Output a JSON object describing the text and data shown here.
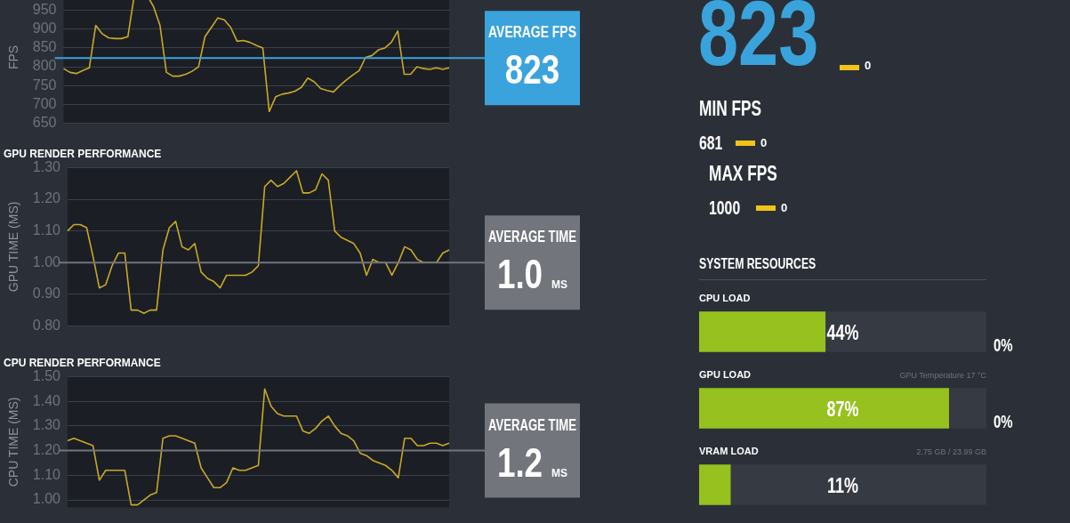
{
  "chart_data": [
    {
      "type": "line",
      "ylabel": "FPS",
      "categories": [
        null,
        null,
        null,
        null,
        null,
        null,
        null,
        null,
        null,
        null,
        null,
        null,
        null,
        null,
        null,
        null,
        null,
        null,
        null,
        null,
        null,
        null,
        null,
        null,
        null,
        null,
        null,
        null,
        null,
        null,
        null,
        null,
        null,
        null,
        null,
        null,
        null,
        null,
        null,
        null,
        null,
        null,
        null,
        null,
        null,
        null,
        null,
        null,
        null,
        null,
        null,
        null,
        null,
        null,
        null,
        null,
        null,
        null,
        null,
        null,
        null
      ],
      "values": [
        795,
        785,
        782,
        790,
        797,
        910,
        888,
        877,
        875,
        875,
        880,
        990,
        1000,
        990,
        960,
        910,
        785,
        775,
        775,
        780,
        788,
        800,
        880,
        905,
        930,
        925,
        905,
        868,
        870,
        865,
        857,
        850,
        681,
        720,
        727,
        730,
        735,
        745,
        770,
        760,
        742,
        737,
        733,
        750,
        765,
        778,
        790,
        825,
        830,
        845,
        850,
        865,
        895,
        780,
        780,
        800,
        795,
        793,
        797,
        793,
        797
      ],
      "color": "#c9a929",
      "ylim": [
        650,
        1000
      ],
      "yticks": [
        650,
        700,
        750,
        800,
        850,
        900,
        950
      ],
      "grid": "y",
      "ref_lines": [
        {
          "axis": "y",
          "value": 823,
          "label": "AVERAGE FPS 823",
          "color": "#3aa3dc"
        }
      ]
    },
    {
      "type": "line",
      "title": "GPU RENDER PERFORMANCE",
      "ylabel": "GPU TIME (MS)",
      "categories": [
        null,
        null,
        null,
        null,
        null,
        null,
        null,
        null,
        null,
        null,
        null,
        null,
        null,
        null,
        null,
        null,
        null,
        null,
        null,
        null,
        null,
        null,
        null,
        null,
        null,
        null,
        null,
        null,
        null,
        null,
        null,
        null,
        null,
        null,
        null,
        null,
        null,
        null,
        null,
        null,
        null,
        null,
        null,
        null,
        null,
        null,
        null,
        null,
        null,
        null,
        null,
        null,
        null,
        null,
        null,
        null,
        null,
        null,
        null,
        null,
        null
      ],
      "values": [
        1.1,
        1.12,
        1.12,
        1.11,
        1.02,
        0.92,
        0.93,
        0.99,
        1.03,
        1.03,
        0.85,
        0.85,
        0.84,
        0.85,
        0.85,
        1.04,
        1.11,
        1.13,
        1.05,
        1.04,
        1.06,
        0.97,
        0.95,
        0.94,
        0.92,
        0.96,
        0.96,
        0.96,
        0.96,
        0.97,
        0.99,
        1.24,
        1.26,
        1.24,
        1.25,
        1.27,
        1.29,
        1.22,
        1.22,
        1.23,
        1.28,
        1.26,
        1.1,
        1.08,
        1.07,
        1.06,
        1.03,
        0.96,
        1.01,
        1.0,
        1.0,
        0.96,
        1.0,
        1.05,
        1.04,
        1.01,
        1.0,
        1.0,
        1.0,
        1.03,
        1.04
      ],
      "color": "#c9a929",
      "ylim": [
        0.8,
        1.3
      ],
      "yticks": [
        {
          "value": 0.8,
          "label": "0.80"
        },
        {
          "value": 0.9,
          "label": "0.90"
        },
        {
          "value": 1.0,
          "label": "1.00"
        },
        {
          "value": 1.1,
          "label": "1.10"
        },
        {
          "value": 1.2,
          "label": "1.20"
        },
        {
          "value": 1.3,
          "label": "1.30"
        }
      ],
      "grid": "y",
      "ref_lines": [
        {
          "axis": "y",
          "value": 1.0,
          "label": "AVERAGE TIME 1.0 MS",
          "color": "#72757c"
        }
      ]
    },
    {
      "type": "line",
      "title": "CPU RENDER PERFORMANCE",
      "ylabel": "CPU TIME (MS)",
      "categories": [
        null,
        null,
        null,
        null,
        null,
        null,
        null,
        null,
        null,
        null,
        null,
        null,
        null,
        null,
        null,
        null,
        null,
        null,
        null,
        null,
        null,
        null,
        null,
        null,
        null,
        null,
        null,
        null,
        null,
        null,
        null,
        null,
        null,
        null,
        null,
        null,
        null,
        null,
        null,
        null,
        null,
        null,
        null,
        null,
        null,
        null,
        null,
        null,
        null,
        null,
        null,
        null,
        null,
        null,
        null,
        null,
        null,
        null,
        null,
        null,
        null
      ],
      "values": [
        1.24,
        1.25,
        1.24,
        1.23,
        1.22,
        1.08,
        1.12,
        1.12,
        1.12,
        1.12,
        0.98,
        0.98,
        1.0,
        1.02,
        1.03,
        1.25,
        1.26,
        1.26,
        1.25,
        1.24,
        1.23,
        1.13,
        1.09,
        1.05,
        1.05,
        1.07,
        1.13,
        1.12,
        1.12,
        1.13,
        1.14,
        1.45,
        1.38,
        1.35,
        1.34,
        1.34,
        1.34,
        1.28,
        1.27,
        1.29,
        1.32,
        1.34,
        1.3,
        1.27,
        1.26,
        1.24,
        1.19,
        1.18,
        1.16,
        1.15,
        1.14,
        1.12,
        1.09,
        1.25,
        1.25,
        1.22,
        1.22,
        1.23,
        1.23,
        1.22,
        1.23
      ],
      "color": "#c9a929",
      "ylim": [
        0.97,
        1.5
      ],
      "yticks": [
        {
          "value": 1.0,
          "label": "1.00"
        },
        {
          "value": 1.1,
          "label": "1.10"
        },
        {
          "value": 1.2,
          "label": "1.20"
        },
        {
          "value": 1.3,
          "label": "1.30"
        },
        {
          "value": 1.4,
          "label": "1.40"
        },
        {
          "value": 1.5,
          "label": "1.50"
        }
      ],
      "grid": "y",
      "ref_lines": [
        {
          "axis": "y",
          "value": 1.2,
          "label": "AVERAGE TIME 1.2 MS",
          "color": "#72757c"
        }
      ]
    },
    {
      "type": "other",
      "annotations": [
        "823",
        "0",
        "MIN FPS",
        "681",
        "0",
        "MAX FPS",
        "1000",
        "0",
        "SYSTEM RESOURCES"
      ]
    },
    {
      "type": "bar",
      "orientation": "horizontal",
      "categories": [
        "CPU LOAD",
        "GPU LOAD",
        "VRAM LOAD"
      ],
      "values": [
        44,
        87,
        11
      ],
      "color": "#96c11f",
      "xlim": [
        0,
        100
      ],
      "tick_labels": "y",
      "value_labels": [
        "44%",
        "87%",
        "11%"
      ],
      "annotations": [
        "0%",
        "GPU Temperature 17 °C",
        "0%",
        "2.75 GB / 23.99 GB"
      ]
    }
  ]
}
